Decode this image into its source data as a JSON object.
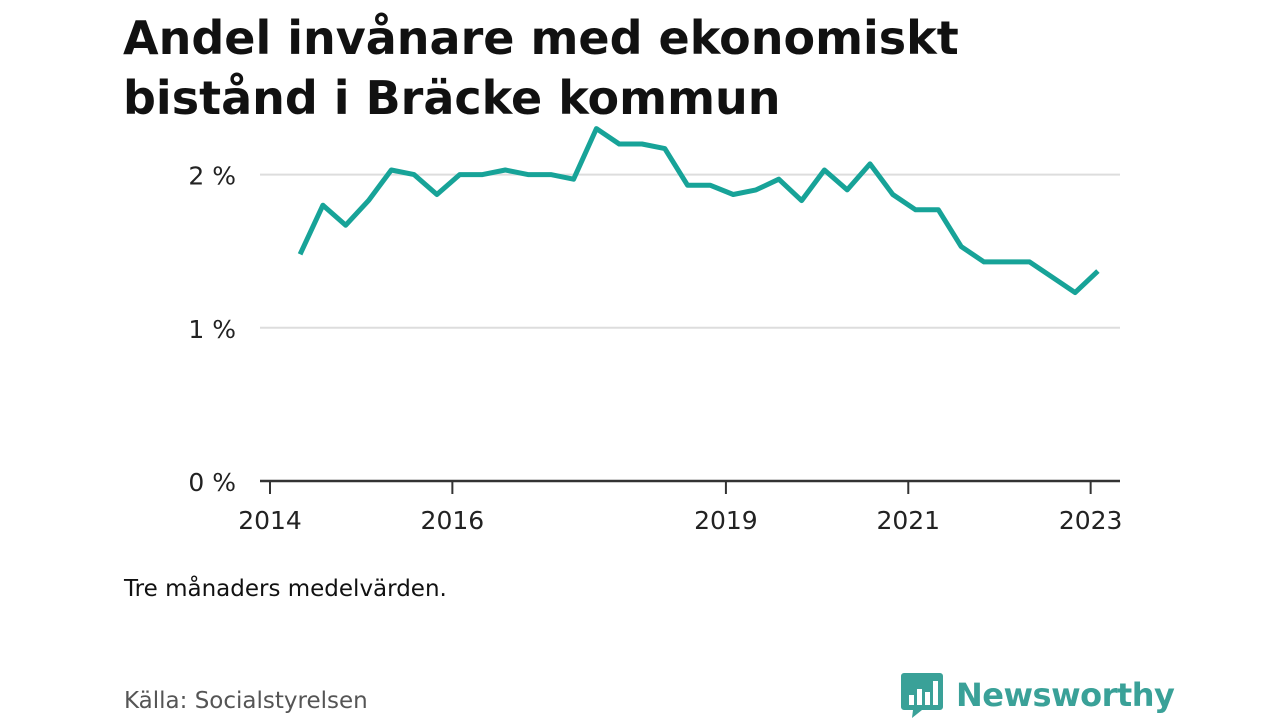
{
  "title": "Andel invånare med ekonomiskt bistånd i Bräcke kommun",
  "note": "Tre månaders medelvärden.",
  "source": "Källa: Socialstyrelsen",
  "brand": {
    "name": "Newsworthy",
    "color": "#3aa198",
    "icon": "bar-chart-speech-bubble-icon"
  },
  "colors": {
    "line": "#17a398",
    "grid": "#dddddd",
    "axis": "#333333",
    "text": "#222222"
  },
  "chart_data": {
    "type": "line",
    "title": "Andel invånare med ekonomiskt bistånd i Bräcke kommun",
    "xlabel": "",
    "ylabel": "",
    "ylim": [
      0,
      2.5
    ],
    "yticks": [
      0,
      1,
      2
    ],
    "ytick_labels": [
      "0 %",
      "1 %",
      "2 %"
    ],
    "xlim": [
      2014.0,
      2023.3
    ],
    "xticks": [
      2014,
      2016,
      2019,
      2021,
      2023
    ],
    "xtick_labels": [
      "2014",
      "2016",
      "2019",
      "2021",
      "2023"
    ],
    "grid": true,
    "legend": "none",
    "series": [
      {
        "name": "",
        "x": [
          2014.33,
          2014.58,
          2014.83,
          2015.08,
          2015.33,
          2015.58,
          2015.83,
          2016.08,
          2016.33,
          2016.58,
          2016.83,
          2017.08,
          2017.33,
          2017.58,
          2017.83,
          2018.08,
          2018.33,
          2018.58,
          2018.83,
          2019.08,
          2019.33,
          2019.58,
          2019.83,
          2020.08,
          2020.33,
          2020.58,
          2020.83,
          2021.08,
          2021.33,
          2021.58,
          2021.83,
          2022.08,
          2022.33,
          2022.58,
          2022.83,
          2023.08
        ],
        "y": [
          1.48,
          1.8,
          1.67,
          1.83,
          2.03,
          2.0,
          1.87,
          2.0,
          2.0,
          2.03,
          2.0,
          2.0,
          1.97,
          2.3,
          2.2,
          2.2,
          2.17,
          1.93,
          1.93,
          1.87,
          1.9,
          1.97,
          1.83,
          2.03,
          1.9,
          2.07,
          1.87,
          1.77,
          1.77,
          1.53,
          1.43,
          1.43,
          1.43,
          1.33,
          1.23,
          1.37
        ]
      }
    ]
  }
}
